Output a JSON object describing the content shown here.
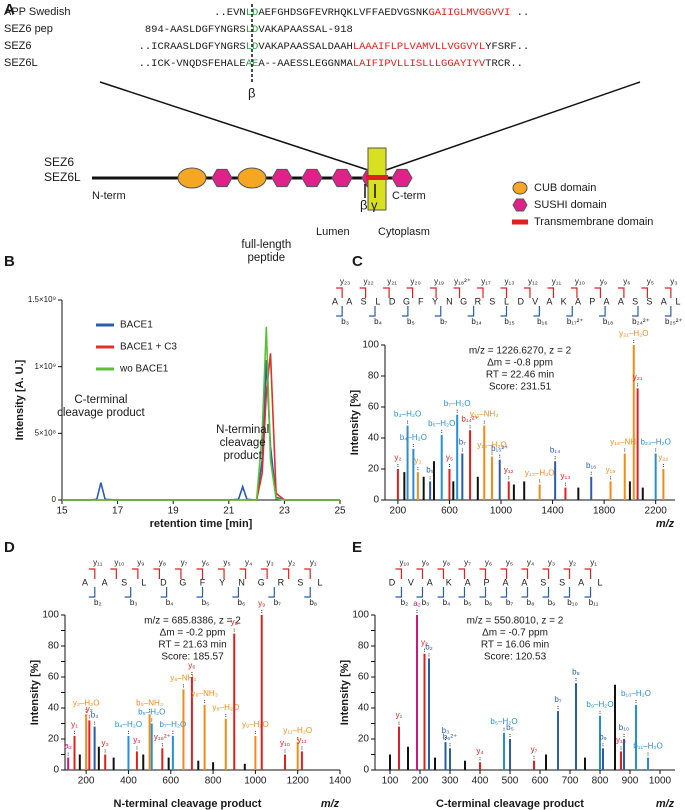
{
  "diagram": {
    "label": "A",
    "alignment": {
      "rows": [
        {
          "name": "APP Swedish",
          "segments": [
            {
              "text": "..EVN",
              "color": "#1a1a1a"
            },
            {
              "text": "L",
              "color": "#2e9e4a"
            },
            {
              "text": "D",
              "color": "#2e9e4a"
            },
            {
              "text": "AEFGHDSGFEVRHQKLVFFAEDVGSNK",
              "color": "#1a1a1a"
            },
            {
              "text": "GAIIGLMVGGVVI",
              "color": "#e02020"
            },
            {
              "text": " ..",
              "color": "#1a1a1a"
            }
          ]
        },
        {
          "name": "SEZ6 pep",
          "segments": [
            {
              "text": "894-AASLDGFYNGRS",
              "color": "#1a1a1a"
            },
            {
              "text": "L",
              "color": "#2e9e4a"
            },
            {
              "text": "D",
              "color": "#2e9e4a"
            },
            {
              "text": "VAKAPAASSAL-918",
              "color": "#1a1a1a"
            }
          ]
        },
        {
          "name": "SEZ6",
          "segments": [
            {
              "text": "..ICRAASLDGFYNGRS",
              "color": "#1a1a1a"
            },
            {
              "text": "L",
              "color": "#2e9e4a"
            },
            {
              "text": "D",
              "color": "#2e9e4a"
            },
            {
              "text": "VAKAPAASSALDAAH",
              "color": "#1a1a1a"
            },
            {
              "text": "LAAAIFLPLVAMVLLVGGVYL",
              "color": "#e02020"
            },
            {
              "text": "YFSRF..",
              "color": "#1a1a1a"
            }
          ]
        },
        {
          "name": "SEZ6L",
          "segments": [
            {
              "text": "..ICK-VNQDSFEHALE",
              "color": "#1a1a1a"
            },
            {
              "text": "A",
              "color": "#2e9e4a"
            },
            {
              "text": "E",
              "color": "#2e9e4a"
            },
            {
              "text": "A--AAESSLEGGNMA",
              "color": "#1a1a1a"
            },
            {
              "text": "LAIFIPVLLISLLLGGAYIYV",
              "color": "#e02020"
            },
            {
              "text": "TRCR..",
              "color": "#1a1a1a"
            }
          ]
        }
      ],
      "cleavage_label": "β"
    },
    "proteins": [
      "SEZ6",
      "SEZ6L"
    ],
    "n_term": "N-term",
    "c_term": "C-term",
    "lumen": "Lumen",
    "cytoplasm": "Cytoplasm",
    "beta": "β",
    "gamma": "γ",
    "legend": [
      {
        "label": "CUB domain",
        "color": "#f5a623"
      },
      {
        "label": "SUSHI domain",
        "color": "#e0218a"
      },
      {
        "label": "Transmembrane domain",
        "color": "#e02020"
      }
    ]
  },
  "chart_data": [
    {
      "type": "line",
      "label": "B",
      "x": [
        15,
        16,
        16.25,
        16.4,
        16.55,
        17,
        21,
        21.35,
        21.5,
        21.65,
        22,
        22.2,
        22.35,
        22.5,
        22.7,
        23,
        25
      ],
      "series": [
        {
          "name": "BACE1",
          "color": "#2a5caa",
          "values": [
            0,
            0,
            5000000,
            130000000,
            5000000,
            0,
            0,
            5000000,
            100000000,
            5000000,
            0,
            300000000,
            1050000000,
            400000000,
            20000000,
            0,
            0
          ]
        },
        {
          "name": "BACE1 + C3",
          "color": "#e0302a",
          "values": [
            0,
            0,
            0,
            0,
            0,
            0,
            0,
            0,
            0,
            0,
            0,
            200000000,
            800000000,
            1100000000,
            50000000,
            0,
            0
          ]
        },
        {
          "name": "wo BACE1",
          "color": "#5cbf3a",
          "values": [
            0,
            0,
            0,
            0,
            0,
            0,
            0,
            0,
            0,
            0,
            0,
            500000000,
            1300000000,
            300000000,
            10000000,
            0,
            0
          ]
        }
      ],
      "xlim": [
        15,
        25
      ],
      "xticks": [
        15,
        17,
        19,
        21,
        23,
        25
      ],
      "ylim": [
        0,
        1500000000
      ],
      "yticks": [
        0,
        {
          "value": 500000000,
          "label": "5×10⁸"
        },
        {
          "value": 1000000000,
          "label": "1×10⁹"
        },
        {
          "value": 1500000000,
          "label": "1.5×10⁹"
        }
      ],
      "x_label": "retention time [min]",
      "y_label": "Intensity [A. U.]",
      "annotations": [
        [
          "C-terminal",
          "cleavage product"
        ],
        [
          "N-terminal",
          "cleavage",
          "product"
        ],
        [
          "full-length",
          "peptide"
        ]
      ],
      "legend": "upper-left"
    },
    {
      "type": "spectrum",
      "label": "C",
      "ladder": {
        "residues": [
          "A",
          "A",
          "S",
          "L",
          "D",
          "G",
          "F",
          "Y",
          "N",
          "G",
          "R",
          "S",
          "L",
          "D",
          "V",
          "A",
          "K",
          "A",
          "P",
          "A",
          "A",
          "S",
          "S",
          "A",
          "L"
        ],
        "y_ions": [
          "y₂₃",
          "y₂₂",
          "y₂₁",
          "y₂₀",
          "y₁₉",
          "y₁₈²⁺",
          "y₁₇",
          "y₁₃",
          "y₁₂",
          "y₁₁",
          "y₁₀",
          "y₉",
          "y₆",
          "y₅",
          "y₃"
        ],
        "b_ions": [
          "b₃",
          "b₄",
          "b₅",
          "b₇",
          "b₁₄",
          "b₁₅",
          "b₁₆",
          "b₁₇²⁺",
          "b₁₈",
          "b₂₄²⁺",
          "b₂₅²⁺"
        ]
      },
      "info": [
        "m/z = 1226.6270, z = 2",
        "Δm = -0.8 ppm",
        "RT = 22.46 min",
        "Score: 231.51"
      ],
      "x": [
        200,
        250,
        275,
        320,
        355,
        400,
        450,
        480,
        540,
        600,
        630,
        660,
        700,
        760,
        820,
        870,
        930,
        990,
        1060,
        1100,
        1180,
        1300,
        1420,
        1500,
        1600,
        1700,
        1850,
        1960,
        2000,
        2030,
        2060,
        2100,
        2200,
        2260
      ],
      "values": [
        20,
        18,
        48,
        33,
        18,
        15,
        12,
        25,
        42,
        20,
        12,
        55,
        30,
        45,
        15,
        48,
        28,
        26,
        12,
        10,
        12,
        10,
        25,
        8,
        8,
        15,
        12,
        30,
        12,
        100,
        72,
        8,
        30,
        20
      ],
      "labels": [
        "y₂",
        null,
        "b₃–H₂O",
        "b₄–H₂O",
        "y₃",
        null,
        "b₅",
        null,
        "b₅–H₂O",
        "y₅",
        null,
        "b₇–H₂O",
        "b₇",
        "b₁₄²⁺",
        null,
        "y₁₁–NH₃",
        "y₁₃–H₂O",
        "b₁₅²⁺",
        "y₁₂",
        null,
        null,
        "y₁₃–H₂O",
        "b₁₄",
        "y₁₃",
        null,
        "b₁₆",
        "y₁₉",
        "y₁₉–NH₃",
        null,
        "y₂₁–H₂O",
        "y₂₁",
        null,
        "b₂₃–H₂O",
        "y₂₂"
      ],
      "colors": [
        "#e02020",
        "#111",
        "#2a8fd0",
        "#2a8fd0",
        "#f08c1a",
        "#111",
        "#2a5caa",
        "#111",
        "#2a8fd0",
        "#e02020",
        "#111",
        "#2a8fd0",
        "#2a5caa",
        "#e02020",
        "#111",
        "#f08c1a",
        "#f08c1a",
        "#2a5caa",
        "#e02020",
        "#111",
        "#111",
        "#f08c1a",
        "#2a5caa",
        "#e02020",
        "#111",
        "#2a5caa",
        "#f08c1a",
        "#f08c1a",
        "#111",
        "#f08c1a",
        "#e02020",
        "#111",
        "#2a8fd0",
        "#f08c1a"
      ],
      "xlim": [
        100,
        2350
      ],
      "xticks": [
        200,
        600,
        1000,
        1400,
        1800,
        2200
      ],
      "ylim": [
        0,
        100
      ],
      "yticks": [
        0,
        20,
        40,
        60,
        80,
        100
      ],
      "x_label": "m/z",
      "y_label": "Intensity [%]"
    },
    {
      "type": "spectrum",
      "label": "D",
      "ladder": {
        "residues": [
          "A",
          "A",
          "S",
          "L",
          "D",
          "G",
          "F",
          "Y",
          "N",
          "G",
          "R",
          "S",
          "L"
        ],
        "y_ions": [
          "y₁₁",
          "y₁₀",
          "y₉",
          "y₈",
          "y₇",
          "y₆",
          "y₅",
          "y₄",
          "y₃",
          "y₂",
          "y₁"
        ],
        "b_ions": [
          "b₂",
          "b₃",
          "b₄",
          "b₅",
          "b₆",
          "b₇",
          "b₈"
        ]
      },
      "info": [
        "m/z = 685.8386, z = 2",
        "Δm = -0.2 ppm",
        "RT = 21.63 min",
        "Score: 185.57"
      ],
      "x": [
        115,
        145,
        170,
        200,
        215,
        240,
        260,
        290,
        330,
        400,
        440,
        470,
        500,
        510,
        560,
        590,
        610,
        660,
        700,
        730,
        760,
        800,
        860,
        900,
        950,
        1000,
        1030,
        1140,
        1200,
        1220
      ],
      "values": [
        8,
        22,
        10,
        36,
        32,
        28,
        15,
        10,
        8,
        22,
        12,
        10,
        36,
        30,
        14,
        8,
        22,
        52,
        60,
        6,
        42,
        5,
        33,
        88,
        4,
        22,
        100,
        10,
        18,
        12
      ],
      "labels": [
        "a₂",
        "y₁",
        null,
        "y₂–H₂O",
        "y₂",
        "b₃",
        null,
        "y₃",
        null,
        "b₄–H₂O",
        "y₃",
        null,
        "b₅–NH₃",
        "b₅–H₂O",
        "y₁₆²⁺",
        null,
        "b₇–H₂O",
        "y₆–NH₃",
        "y₆",
        null,
        "y₈–NH₃",
        null,
        "y₈–H₂O",
        "y₈",
        null,
        "y₉–H₂O",
        "y₉",
        "y₁₀",
        "y₁₁–H₂O",
        "y₁₁"
      ],
      "colors": [
        "#d0187c",
        "#e02020",
        "#111",
        "#f08c1a",
        "#e02020",
        "#2a5caa",
        "#111",
        "#e02020",
        "#111",
        "#2a8fd0",
        "#e02020",
        "#111",
        "#f08c1a",
        "#2a8fd0",
        "#e02020",
        "#111",
        "#2a8fd0",
        "#f08c1a",
        "#e02020",
        "#111",
        "#f08c1a",
        "#111",
        "#f08c1a",
        "#e02020",
        "#111",
        "#f08c1a",
        "#e02020",
        "#e02020",
        "#f08c1a",
        "#e02020"
      ],
      "xlim": [
        100,
        1400
      ],
      "xticks": [
        200,
        400,
        600,
        800,
        1000,
        1200,
        1400
      ],
      "ylim": [
        0,
        100
      ],
      "yticks": [
        0,
        10,
        20,
        30,
        40,
        50,
        60,
        70,
        80,
        90,
        100
      ],
      "x_label": "m/z",
      "y_label": "Intensity [%]",
      "caption": "N-terminal cleavage product"
    },
    {
      "type": "spectrum",
      "label": "E",
      "ladder": {
        "residues": [
          "D",
          "V",
          "A",
          "K",
          "A",
          "P",
          "A",
          "A",
          "S",
          "S",
          "A",
          "L"
        ],
        "y_ions": [
          "y₁₀",
          "y₉",
          "y₈",
          "y₇",
          "y₆",
          "y₅",
          "y₄",
          "y₃",
          "y₂",
          "y₁"
        ],
        "b_ions": [
          "b₂",
          "b₃",
          "b₄",
          "b₅",
          "b₆",
          "b₇",
          "b₈",
          "b₉",
          "b₁₀",
          "b₁₁"
        ]
      },
      "info": [
        "m/z = 550.8010, z = 2",
        "Δm = -0.7 ppm",
        "RT = 16.06 min",
        "Score: 120.53"
      ],
      "x": [
        100,
        130,
        160,
        190,
        215,
        230,
        250,
        285,
        300,
        350,
        400,
        480,
        500,
        580,
        620,
        660,
        720,
        750,
        800,
        810,
        850,
        870,
        880,
        920,
        960
      ],
      "values": [
        10,
        28,
        15,
        100,
        75,
        72,
        8,
        18,
        14,
        6,
        5,
        24,
        20,
        6,
        10,
        38,
        56,
        8,
        35,
        14,
        55,
        12,
        20,
        42,
        8
      ],
      "labels": [
        null,
        "y₁",
        null,
        "a₂",
        "y₂",
        "b₂",
        null,
        "b₃",
        "b₆²⁺",
        null,
        "y₄",
        "b₅–H₂O",
        "b₅",
        "y₇",
        null,
        "b₇",
        "b₈",
        null,
        "b₉–H₂O",
        "b₉",
        null,
        "y₁₀",
        "b₁₀",
        "b₁₀–H₂O",
        "b₁₁–H₂O"
      ],
      "colors": [
        "#111",
        "#e02020",
        "#111",
        "#d0187c",
        "#e02020",
        "#2a5caa",
        "#111",
        "#2a5caa",
        "#2a5caa",
        "#111",
        "#e02020",
        "#2a8fd0",
        "#2a5caa",
        "#e02020",
        "#111",
        "#2a5caa",
        "#2a5caa",
        "#111",
        "#2a8fd0",
        "#2a5caa",
        "#111",
        "#e02020",
        "#2a5caa",
        "#2a8fd0",
        "#2a8fd0"
      ],
      "xlim": [
        50,
        1050
      ],
      "xticks": [
        100,
        200,
        300,
        400,
        500,
        600,
        700,
        800,
        900,
        1000
      ],
      "ylim": [
        0,
        100
      ],
      "yticks": [
        0,
        10,
        20,
        30,
        40,
        50,
        60,
        70,
        80,
        90,
        100
      ],
      "x_label": "m/z",
      "y_label": "Intensity [%]",
      "caption": "C-terminal cleavage product"
    }
  ]
}
